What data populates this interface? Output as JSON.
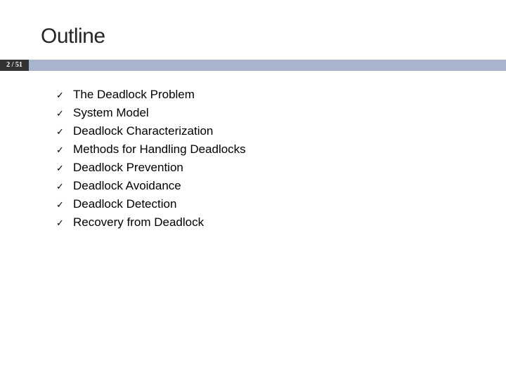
{
  "slide": {
    "title": "Outline",
    "page_number": "2 / 51",
    "title_color": "#262626",
    "title_fontsize": 30,
    "bar_color": "#a8b4cc",
    "page_badge_bg": "#333333",
    "page_badge_text_color": "#ffffff",
    "background_color": "#ffffff",
    "bullet_glyph": "✓",
    "bullet_color": "#000000",
    "text_color": "#000000",
    "text_fontsize": 17,
    "items": [
      {
        "label": "The Deadlock Problem"
      },
      {
        "label": "System Model"
      },
      {
        "label": "Deadlock Characterization"
      },
      {
        "label": "Methods for Handling Deadlocks"
      },
      {
        "label": "Deadlock Prevention"
      },
      {
        "label": "Deadlock Avoidance"
      },
      {
        "label": "Deadlock Detection"
      },
      {
        "label": "Recovery from Deadlock"
      }
    ]
  }
}
